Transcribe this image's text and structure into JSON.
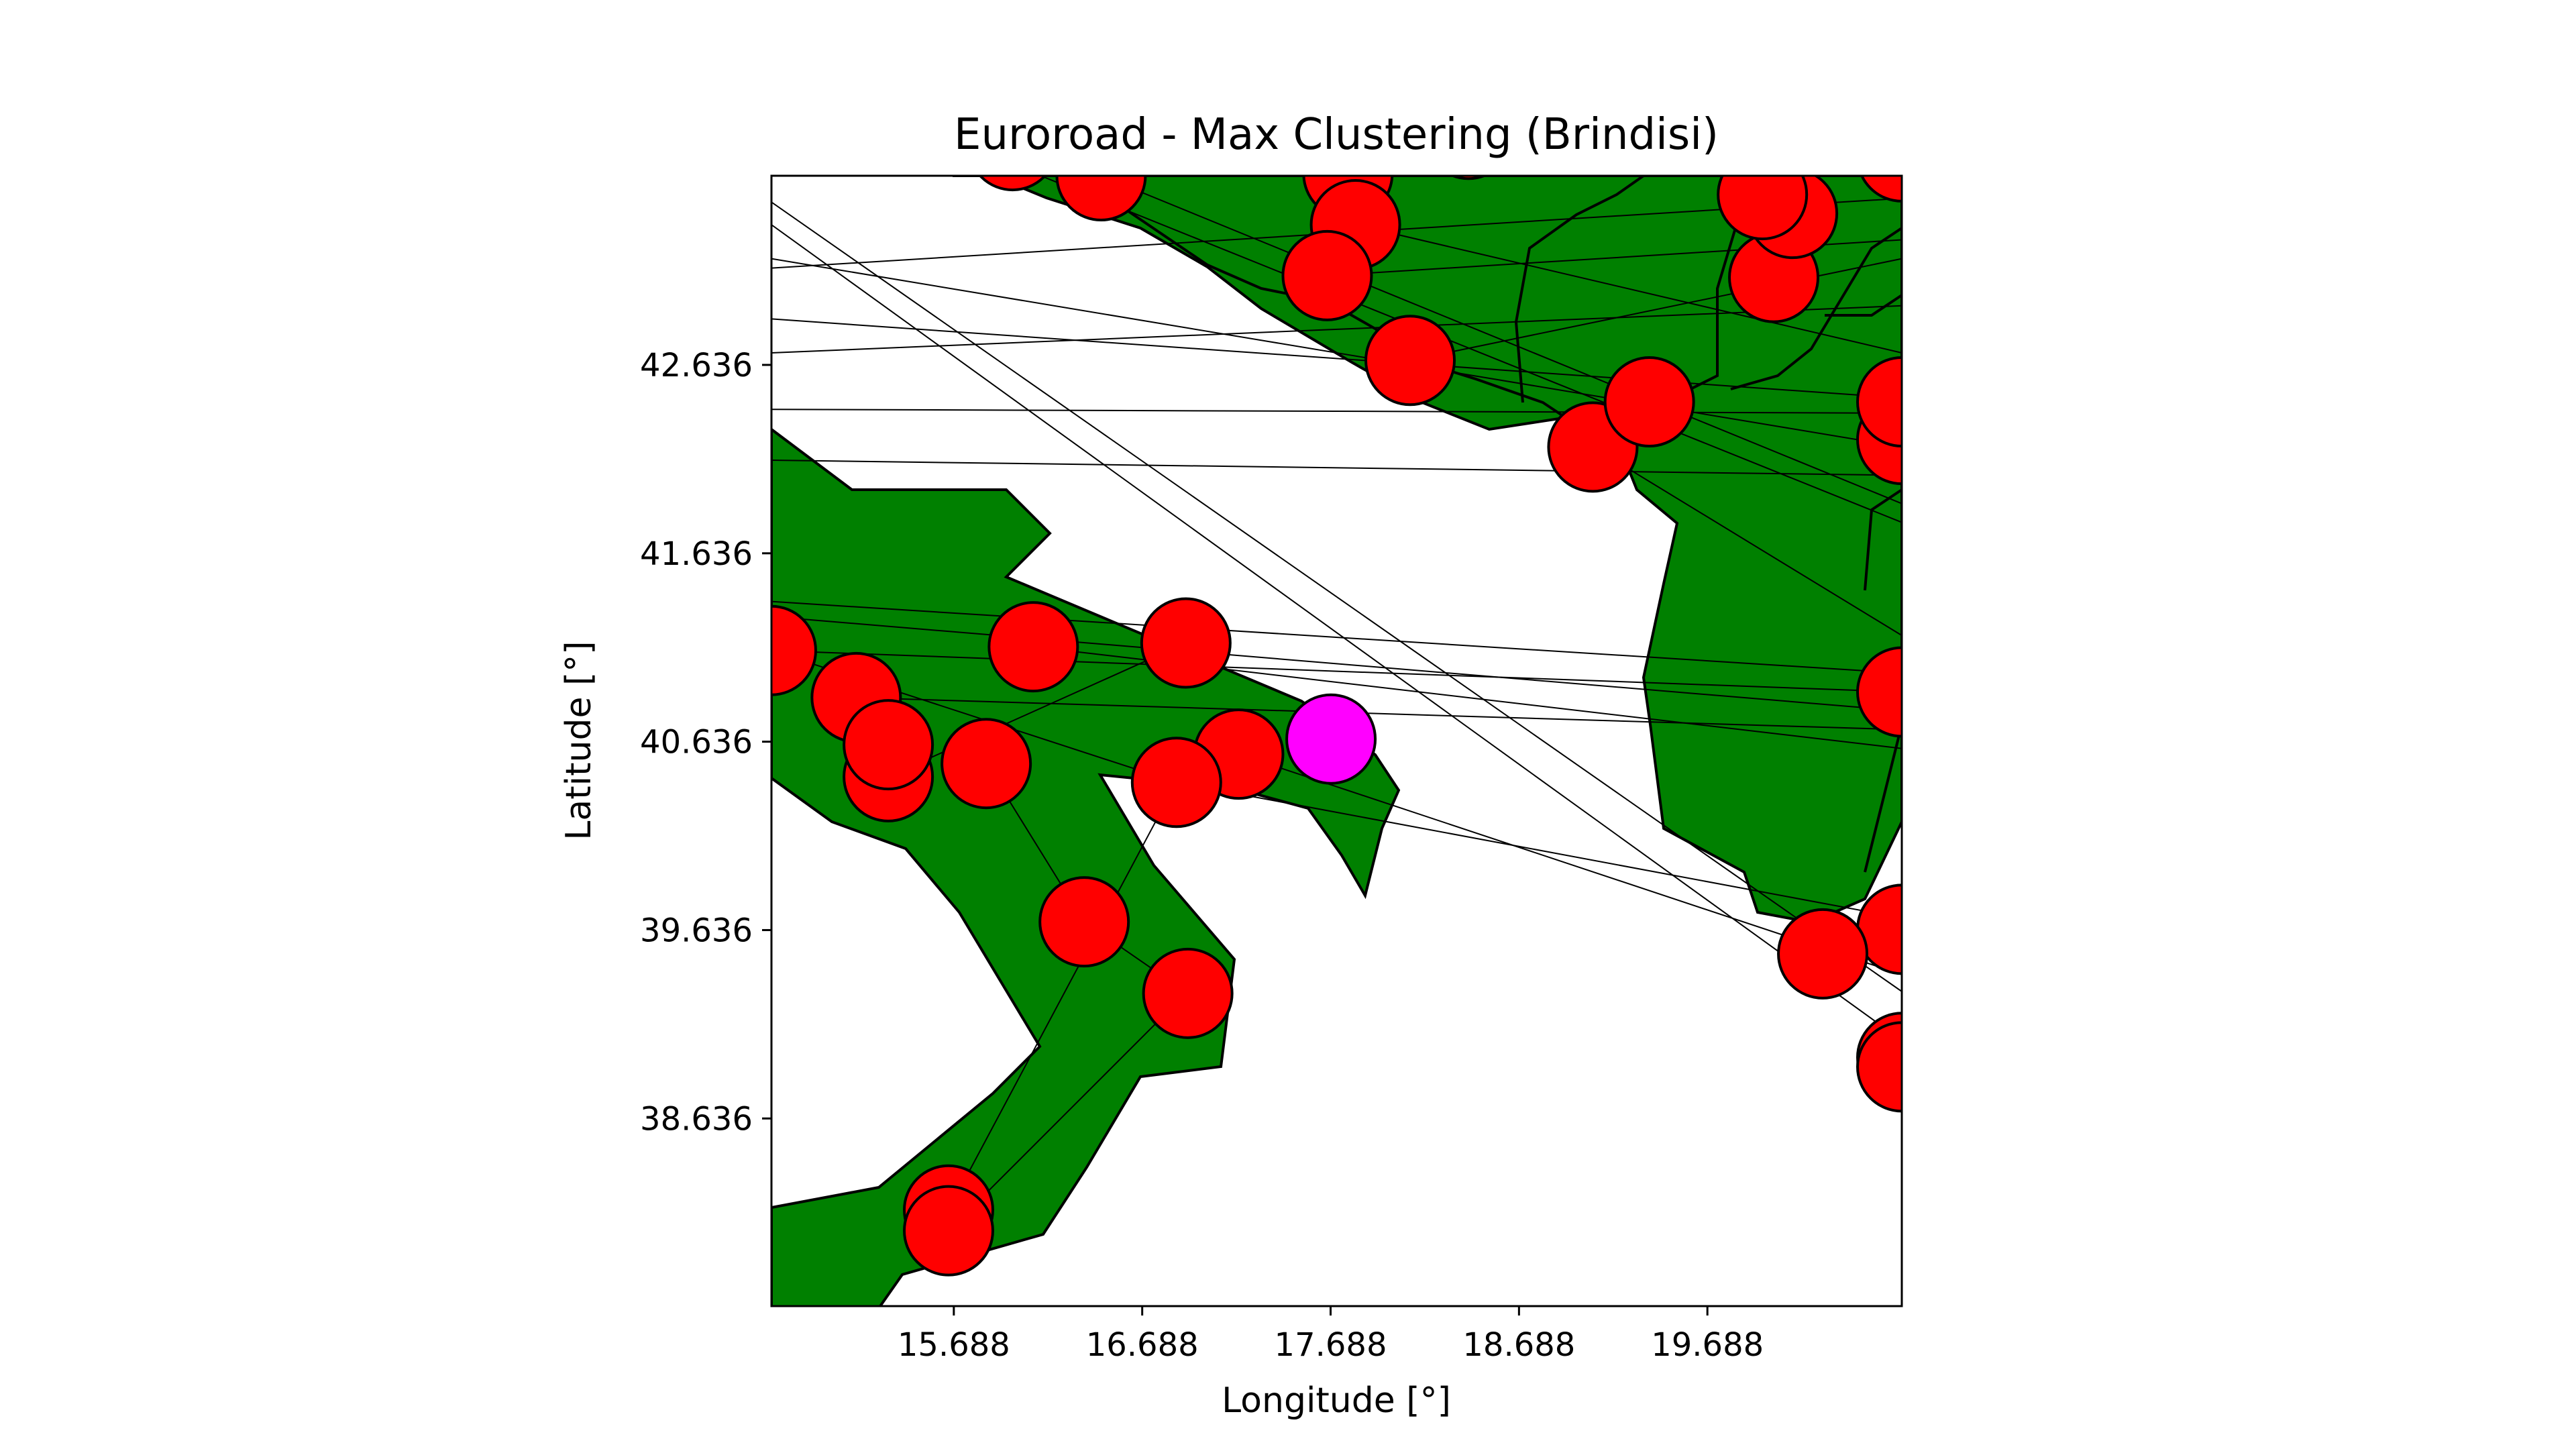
{
  "chart_data": {
    "type": "scatter",
    "title": "Euroroad - Max Clustering (Brindisi)",
    "xlabel": "Longitude [°]",
    "ylabel": "Latitude [°]",
    "xlim": [
      14.72,
      20.72
    ],
    "ylim": [
      37.64,
      43.64
    ],
    "xticks": [
      15.688,
      16.688,
      17.688,
      18.688,
      19.688
    ],
    "xtick_labels": [
      "15.688",
      "16.688",
      "17.688",
      "18.688",
      "19.688"
    ],
    "yticks": [
      38.636,
      39.636,
      40.636,
      41.636,
      42.636
    ],
    "ytick_labels": [
      "38.636",
      "39.636",
      "40.636",
      "41.636",
      "42.636"
    ],
    "grid": false,
    "colors": {
      "land": "#008000",
      "node": "#ff0000",
      "highlight": "#ff00ff",
      "edge": "#000000"
    },
    "highlight": {
      "name": "Brindisi",
      "lon": 17.69,
      "lat": 40.65
    },
    "nodes": [
      [
        14.72,
        41.12
      ],
      [
        15.17,
        40.87
      ],
      [
        15.34,
        40.45
      ],
      [
        15.34,
        40.62
      ],
      [
        16.11,
        41.14
      ],
      [
        15.86,
        40.52
      ],
      [
        16.92,
        41.16
      ],
      [
        17.2,
        40.57
      ],
      [
        16.87,
        40.42
      ],
      [
        16.38,
        39.68
      ],
      [
        16.93,
        39.3
      ],
      [
        15.66,
        38.15
      ],
      [
        15.66,
        38.04
      ],
      [
        16.0,
        43.8
      ],
      [
        16.47,
        43.64
      ],
      [
        17.78,
        43.65
      ],
      [
        17.82,
        43.38
      ],
      [
        17.67,
        43.11
      ],
      [
        18.11,
        42.66
      ],
      [
        19.08,
        42.2
      ],
      [
        19.38,
        42.44
      ],
      [
        20.04,
        43.1
      ],
      [
        20.14,
        43.44
      ],
      [
        19.98,
        43.54
      ],
      [
        18.42,
        43.86
      ],
      [
        20.72,
        43.74
      ],
      [
        20.72,
        42.24
      ],
      [
        20.72,
        42.44
      ],
      [
        20.72,
        40.9
      ],
      [
        20.72,
        39.64
      ],
      [
        20.3,
        39.51
      ],
      [
        20.72,
        38.96
      ],
      [
        20.72,
        38.91
      ]
    ],
    "edges": [
      [
        [
          14.72,
          43.5
        ],
        [
          20.72,
          39.31
        ]
      ],
      [
        [
          14.72,
          43.38
        ],
        [
          20.72,
          39.05
        ]
      ],
      [
        [
          14.72,
          43.15
        ],
        [
          20.72,
          43.52
        ]
      ],
      [
        [
          14.72,
          42.88
        ],
        [
          20.72,
          42.46
        ]
      ],
      [
        [
          14.72,
          42.7
        ],
        [
          20.72,
          42.95
        ]
      ],
      [
        [
          14.72,
          42.4
        ],
        [
          20.72,
          42.38
        ]
      ],
      [
        [
          14.72,
          42.13
        ],
        [
          20.72,
          42.05
        ]
      ],
      [
        [
          14.72,
          43.2
        ],
        [
          20.72,
          42.2
        ]
      ],
      [
        [
          16.0,
          43.7
        ],
        [
          20.72,
          41.8
        ]
      ],
      [
        [
          16.47,
          43.64
        ],
        [
          20.72,
          41.9
        ]
      ],
      [
        [
          14.72,
          41.38
        ],
        [
          20.72,
          41.0
        ]
      ],
      [
        [
          14.72,
          41.3
        ],
        [
          20.72,
          40.8
        ]
      ],
      [
        [
          14.72,
          41.12
        ],
        [
          20.72,
          40.9
        ]
      ],
      [
        [
          15.17,
          40.87
        ],
        [
          20.72,
          40.7
        ]
      ],
      [
        [
          16.11,
          41.14
        ],
        [
          20.72,
          40.6
        ]
      ],
      [
        [
          16.87,
          40.42
        ],
        [
          20.72,
          39.7
        ]
      ],
      [
        [
          17.2,
          40.57
        ],
        [
          20.72,
          39.4
        ]
      ],
      [
        [
          17.67,
          43.11
        ],
        [
          20.72,
          43.3
        ]
      ],
      [
        [
          17.82,
          43.38
        ],
        [
          20.72,
          42.7
        ]
      ],
      [
        [
          18.11,
          42.66
        ],
        [
          20.72,
          43.2
        ]
      ],
      [
        [
          19.08,
          42.2
        ],
        [
          20.72,
          41.2
        ]
      ],
      [
        [
          14.72,
          41.12
        ],
        [
          16.87,
          40.42
        ]
      ],
      [
        [
          15.34,
          40.45
        ],
        [
          16.92,
          41.16
        ]
      ],
      [
        [
          15.66,
          38.15
        ],
        [
          16.87,
          40.42
        ]
      ],
      [
        [
          15.66,
          38.04
        ],
        [
          16.92,
          39.3
        ]
      ],
      [
        [
          16.38,
          39.68
        ],
        [
          16.93,
          39.3
        ]
      ],
      [
        [
          15.86,
          40.52
        ],
        [
          16.38,
          39.68
        ]
      ]
    ]
  }
}
